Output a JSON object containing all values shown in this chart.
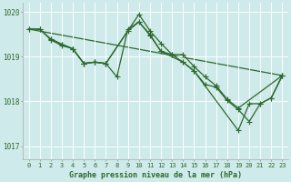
{
  "background_color": "#ceeaea",
  "grid_color": "#ffffff",
  "line_color": "#2d6a2d",
  "xlim": [
    -0.5,
    23.5
  ],
  "ylim": [
    1016.7,
    1020.2
  ],
  "yticks": [
    1017,
    1018,
    1019,
    1020
  ],
  "xticks": [
    0,
    1,
    2,
    3,
    4,
    5,
    6,
    7,
    8,
    9,
    10,
    11,
    12,
    13,
    14,
    15,
    16,
    17,
    18,
    19,
    20,
    21,
    22,
    23
  ],
  "xlabel": "Graphe pression niveau de la mer (hPa)",
  "marker": "+",
  "marker_size": 4,
  "linewidth": 0.9,
  "series": [
    {
      "x": [
        0,
        23
      ],
      "y": [
        1019.62,
        1018.58
      ],
      "has_markers": false
    },
    {
      "x": [
        0,
        1,
        2,
        3,
        4,
        5,
        6,
        7,
        10,
        11,
        12,
        13,
        14,
        15,
        16,
        17,
        18,
        19,
        23
      ],
      "y": [
        1019.62,
        1019.62,
        1019.4,
        1019.28,
        1019.18,
        1018.85,
        1018.88,
        1018.85,
        1019.95,
        1019.58,
        1019.3,
        1019.05,
        1019.05,
        1018.78,
        1018.55,
        1018.35,
        1018.05,
        1017.85,
        1018.58
      ],
      "has_markers": true
    },
    {
      "x": [
        2,
        3,
        4,
        5,
        6,
        7,
        9,
        10,
        11,
        12,
        13,
        14,
        15,
        16,
        17,
        18,
        19,
        20,
        21,
        22,
        23
      ],
      "y": [
        1019.4,
        1019.28,
        1019.18,
        1018.85,
        1018.88,
        1018.85,
        1019.58,
        1019.78,
        1019.48,
        1019.12,
        1019.05,
        1018.88,
        1018.68,
        1018.38,
        1018.32,
        1018.02,
        1017.82,
        1017.55,
        1017.95,
        1018.08,
        1018.58
      ],
      "has_markers": true
    },
    {
      "x": [
        0,
        1,
        2,
        3,
        4,
        5,
        6,
        7,
        8,
        9,
        10,
        11,
        12,
        14,
        15,
        19,
        20,
        21,
        22,
        23
      ],
      "y": [
        1019.62,
        1019.62,
        1019.38,
        1019.25,
        1019.18,
        1018.85,
        1018.88,
        1018.85,
        1018.55,
        1019.62,
        1019.78,
        1019.5,
        1019.12,
        1018.88,
        1018.68,
        1017.35,
        1017.95,
        1017.95,
        1018.08,
        1018.58
      ],
      "has_markers": true
    }
  ]
}
